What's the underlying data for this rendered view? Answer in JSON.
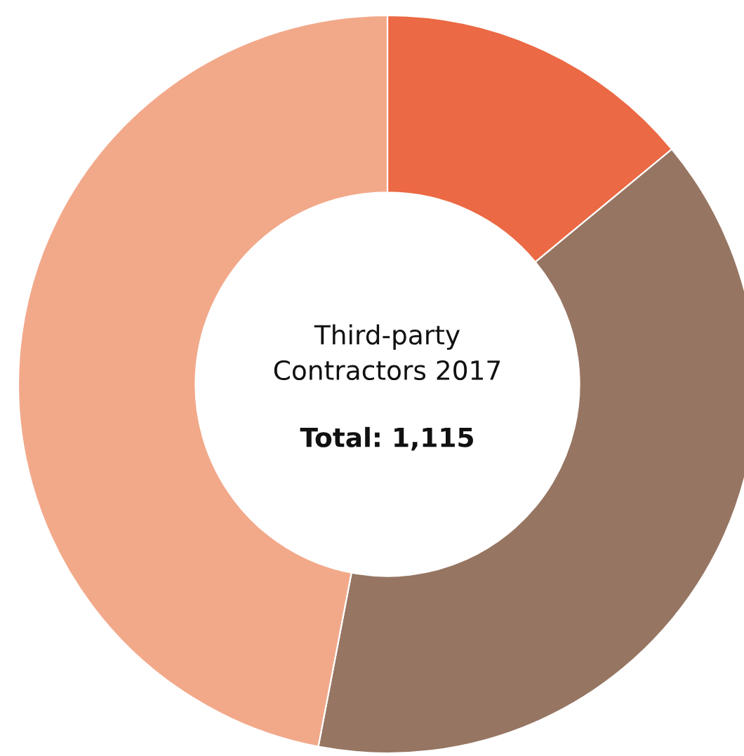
{
  "chart_data": {
    "type": "donut",
    "title": "Third-party\nContractors 2017",
    "annotations": [
      "Total: 1,115"
    ],
    "categories": [
      null,
      null,
      null
    ],
    "values": [
      14,
      39,
      47
    ],
    "colors": [
      "#eb6944",
      "#967562",
      "#f2a98a"
    ]
  }
}
